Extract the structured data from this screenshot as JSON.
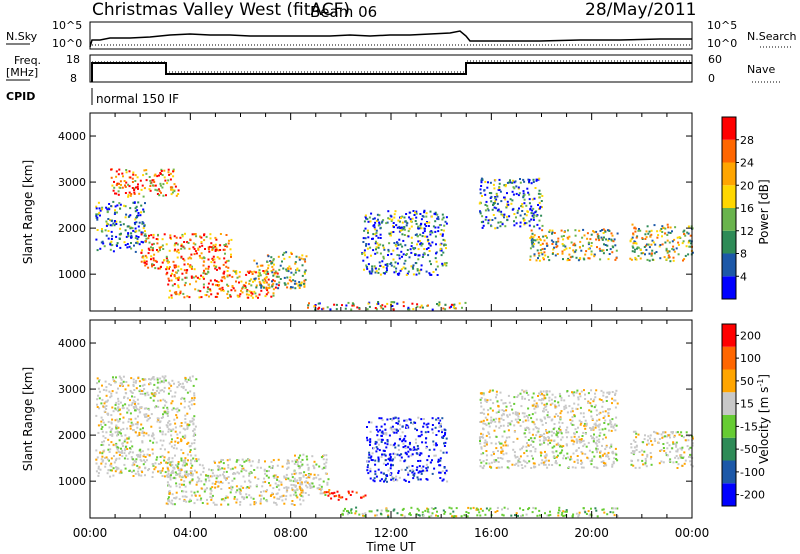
{
  "header": {
    "station": "Christmas Valley West (fitACF)",
    "beam": "Beam 06",
    "date": "28/May/2011"
  },
  "top_panels": {
    "noise": {
      "left_label": "N.Sky",
      "left_ticks": [
        "10^5",
        "10^0"
      ],
      "right_label": "N.Search",
      "right_ticks": [
        "10^5",
        "10^0"
      ]
    },
    "freq": {
      "left_label_1": "Freq.",
      "left_label_2": "[MHz]",
      "left_ticks": [
        "18",
        "8"
      ],
      "right_label": "Nave",
      "right_ticks": [
        "60",
        "0"
      ]
    },
    "cpid": {
      "label": "CPID",
      "value": "normal 150 IF"
    }
  },
  "chart_data": [
    {
      "type": "heatmap",
      "panel": "power",
      "ylabel": "Slant Range [km]",
      "yticks": [
        "1000",
        "2000",
        "3000",
        "4000"
      ],
      "ylim": [
        200,
        4500
      ],
      "xlim_hours": [
        0,
        24
      ],
      "colorbar": {
        "label": "Power [dB]",
        "ticks": [
          "4",
          "8",
          "12",
          "16",
          "20",
          "24",
          "28"
        ],
        "colors": [
          "#0000ff",
          "#1c58a8",
          "#2e8b57",
          "#69b34c",
          "#ffd700",
          "#ffa500",
          "#ff6600",
          "#ff0000"
        ]
      },
      "echo_regions": [
        {
          "t0": 0.2,
          "t1": 2.2,
          "r0": 1500,
          "r1": 2600,
          "level": "low"
        },
        {
          "t0": 0.8,
          "t1": 3.5,
          "r0": 2700,
          "r1": 3300,
          "level": "high"
        },
        {
          "t0": 2.0,
          "t1": 5.6,
          "r0": 1100,
          "r1": 1900,
          "level": "high"
        },
        {
          "t0": 3.0,
          "t1": 7.5,
          "r0": 500,
          "r1": 1100,
          "level": "high"
        },
        {
          "t0": 6.5,
          "t1": 8.6,
          "r0": 700,
          "r1": 1500,
          "level": "mid"
        },
        {
          "t0": 10.8,
          "t1": 14.2,
          "r0": 1000,
          "r1": 2400,
          "level": "low"
        },
        {
          "t0": 15.5,
          "t1": 18.0,
          "r0": 2000,
          "r1": 3100,
          "level": "low"
        },
        {
          "t0": 17.5,
          "t1": 21.0,
          "r0": 1300,
          "r1": 2000,
          "level": "mid"
        },
        {
          "t0": 21.5,
          "t1": 24.0,
          "r0": 1300,
          "r1": 2100,
          "level": "mid"
        },
        {
          "t0": 8.5,
          "t1": 15.0,
          "r0": 250,
          "r1": 420,
          "level": "mixed"
        }
      ]
    },
    {
      "type": "heatmap",
      "panel": "velocity",
      "ylabel": "Slant Range [km]",
      "yticks": [
        "1000",
        "2000",
        "3000",
        "4000"
      ],
      "ylim": [
        200,
        4500
      ],
      "xlim_hours": [
        0,
        24
      ],
      "xticks": [
        "00:00",
        "04:00",
        "08:00",
        "12:00",
        "16:00",
        "20:00",
        "00:00"
      ],
      "xlabel": "Time UT",
      "colorbar": {
        "label": "Velocity [m s",
        "label_sup": "-1",
        "label_end": "]",
        "ticks": [
          "200",
          "100",
          "50",
          "15",
          "-15",
          "-50",
          "-100",
          "-200"
        ],
        "colors": [
          "#0000ff",
          "#1c58a8",
          "#2e8b57",
          "#66cc33",
          "#c8c8c8",
          "#ffa500",
          "#ff6600",
          "#ff0000"
        ]
      },
      "echo_regions": [
        {
          "t0": 0.2,
          "t1": 4.2,
          "r0": 1100,
          "r1": 3300,
          "level": "gray"
        },
        {
          "t0": 3.0,
          "t1": 8.5,
          "r0": 500,
          "r1": 1500,
          "level": "gray"
        },
        {
          "t0": 8.0,
          "t1": 9.5,
          "r0": 700,
          "r1": 1600,
          "level": "gray"
        },
        {
          "t0": 11.0,
          "t1": 14.2,
          "r0": 1000,
          "r1": 2400,
          "level": "blue"
        },
        {
          "t0": 15.5,
          "t1": 21.0,
          "r0": 1300,
          "r1": 3000,
          "level": "gray"
        },
        {
          "t0": 21.5,
          "t1": 24.0,
          "r0": 1300,
          "r1": 2100,
          "level": "gray"
        },
        {
          "t0": 10.0,
          "t1": 21.0,
          "r0": 250,
          "r1": 450,
          "level": "green"
        },
        {
          "t0": 9.3,
          "t1": 11.0,
          "r0": 600,
          "r1": 800,
          "level": "red"
        }
      ]
    }
  ]
}
